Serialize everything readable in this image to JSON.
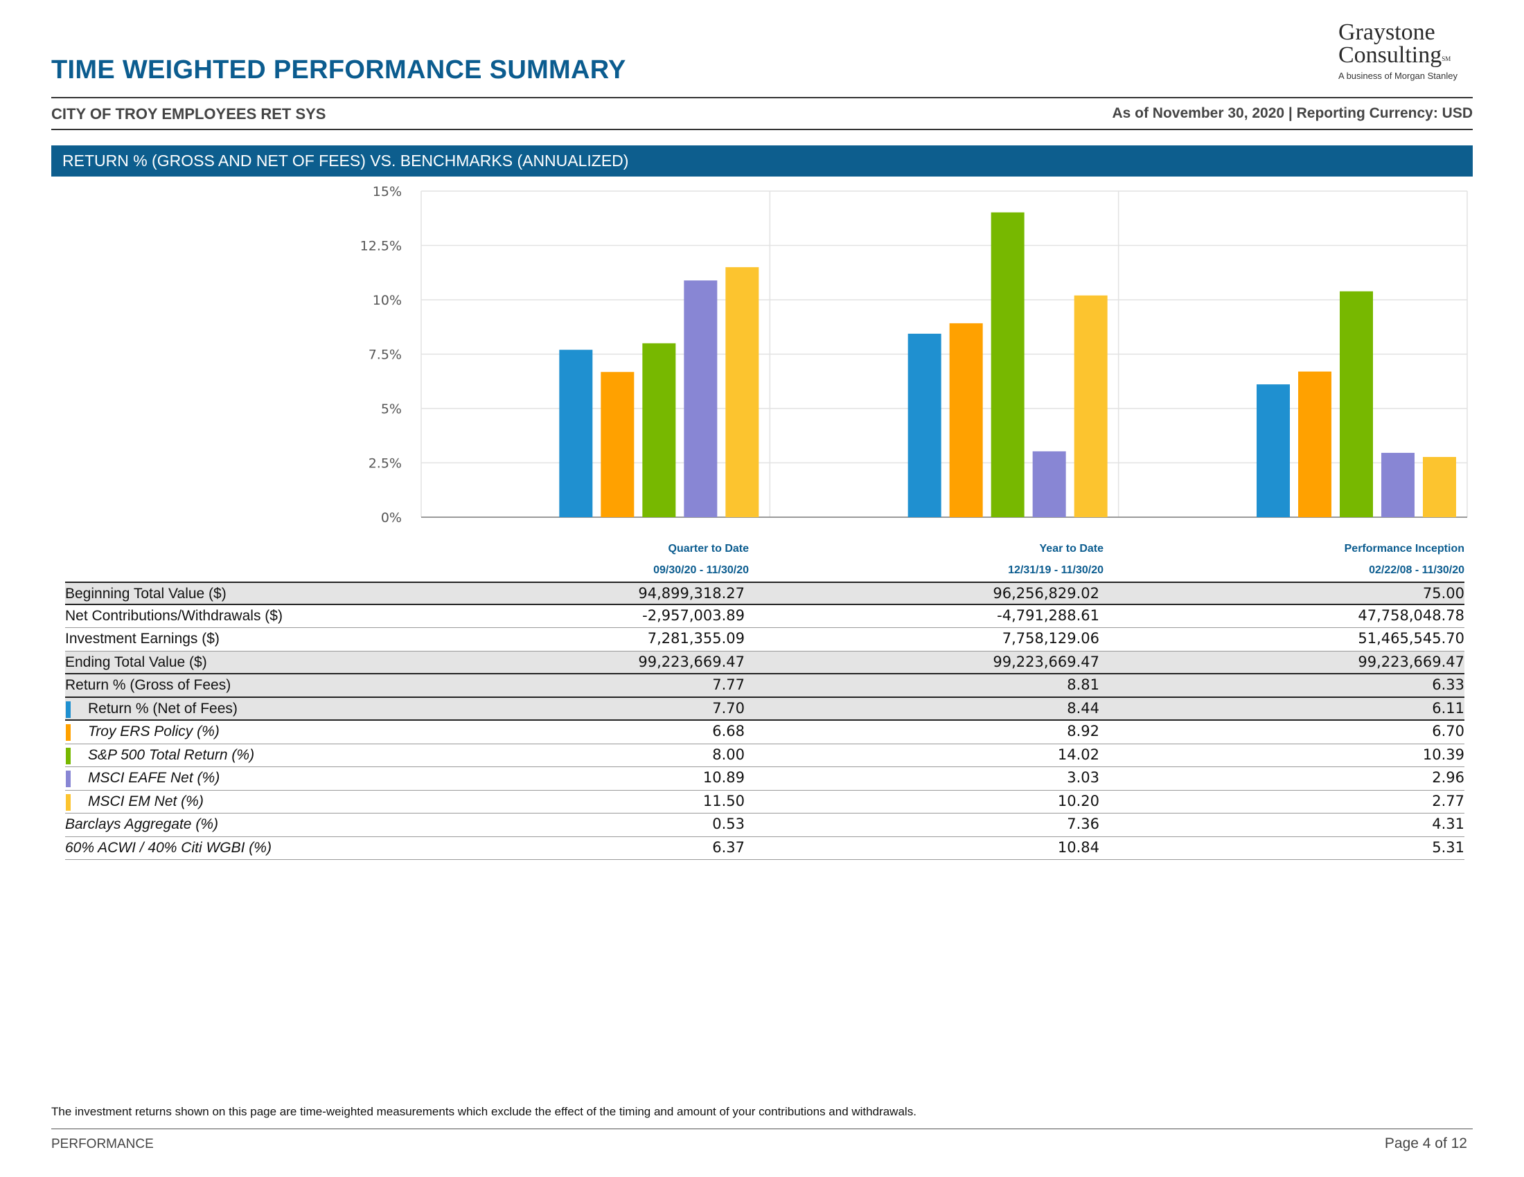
{
  "header": {
    "title": "TIME WEIGHTED PERFORMANCE SUMMARY",
    "logo": {
      "line1": "Graystone",
      "line2": "Consulting",
      "mark": "SM",
      "tagline": "A business of Morgan Stanley"
    },
    "client": "CITY OF TROY EMPLOYEES RET SYS",
    "as_of": "As of November 30, 2020 | Reporting Currency: USD"
  },
  "section_title": "RETURN % (GROSS AND NET OF FEES) VS. BENCHMARKS (ANNUALIZED)",
  "colors": {
    "brand": "#0d5e8e",
    "net_of_fees": "#1f90d0",
    "troy_ers_policy": "#ffa100",
    "sp500": "#77b800",
    "msci_eafe": "#8886d4",
    "msci_em": "#fcc42f"
  },
  "chart_data": {
    "type": "bar",
    "categories": [
      "Quarter to Date",
      "Year to Date",
      "Performance Inception"
    ],
    "ylim": [
      0,
      15
    ],
    "y_ticks": [
      "0%",
      "2.5%",
      "5%",
      "7.5%",
      "10%",
      "12.5%",
      "15%"
    ],
    "grid": true,
    "series": [
      {
        "name": "Return % (Net of Fees)",
        "color": "#1f90d0",
        "values": [
          7.7,
          8.44,
          6.11
        ]
      },
      {
        "name": "Troy ERS Policy (%)",
        "color": "#ffa100",
        "values": [
          6.68,
          8.92,
          6.7
        ]
      },
      {
        "name": "S&P 500 Total Return (%)",
        "color": "#77b800",
        "values": [
          8.0,
          14.02,
          10.39
        ]
      },
      {
        "name": "MSCI EAFE Net (%)",
        "color": "#8886d4",
        "values": [
          10.89,
          3.03,
          2.96
        ]
      },
      {
        "name": "MSCI EM Net (%)",
        "color": "#fcc42f",
        "values": [
          11.5,
          10.2,
          2.77
        ]
      }
    ]
  },
  "columns": [
    {
      "label": "Quarter to Date",
      "period": "09/30/20 - 11/30/20"
    },
    {
      "label": "Year to Date",
      "period": "12/31/19 - 11/30/20"
    },
    {
      "label": "Performance Inception",
      "period": "02/22/08 - 11/30/20"
    }
  ],
  "rows": [
    {
      "label": "Beginning Total Value ($)",
      "values": [
        "94,899,318.27",
        "96,256,829.02",
        "75.00"
      ]
    },
    {
      "label": "Net Contributions/Withdrawals ($)",
      "values": [
        "-2,957,003.89",
        "-4,791,288.61",
        "47,758,048.78"
      ]
    },
    {
      "label": "Investment Earnings ($)",
      "values": [
        "7,281,355.09",
        "7,758,129.06",
        "51,465,545.70"
      ]
    },
    {
      "label": "Ending Total Value ($)",
      "values": [
        "99,223,669.47",
        "99,223,669.47",
        "99,223,669.47"
      ]
    },
    {
      "label": "Return % (Gross of Fees)",
      "values": [
        "7.77",
        "8.81",
        "6.33"
      ]
    },
    {
      "label": "Return % (Net of Fees)",
      "values": [
        "7.70",
        "8.44",
        "6.11"
      ]
    },
    {
      "label": "Troy ERS Policy (%)",
      "values": [
        "6.68",
        "8.92",
        "6.70"
      ]
    },
    {
      "label": "S&P 500 Total Return (%)",
      "values": [
        "8.00",
        "14.02",
        "10.39"
      ]
    },
    {
      "label": "MSCI EAFE Net (%)",
      "values": [
        "10.89",
        "3.03",
        "2.96"
      ]
    },
    {
      "label": "MSCI EM Net (%)",
      "values": [
        "11.50",
        "10.20",
        "2.77"
      ]
    },
    {
      "label": "Barclays Aggregate (%)",
      "values": [
        "0.53",
        "7.36",
        "4.31"
      ]
    },
    {
      "label": "60% ACWI / 40% Citi WGBI (%)",
      "values": [
        "6.37",
        "10.84",
        "5.31"
      ]
    }
  ],
  "footer": {
    "note": "The investment returns shown on this page are time-weighted measurements which exclude the effect of the timing and amount of your contributions and withdrawals.",
    "section": "PERFORMANCE",
    "page": "Page 4 of 12"
  }
}
